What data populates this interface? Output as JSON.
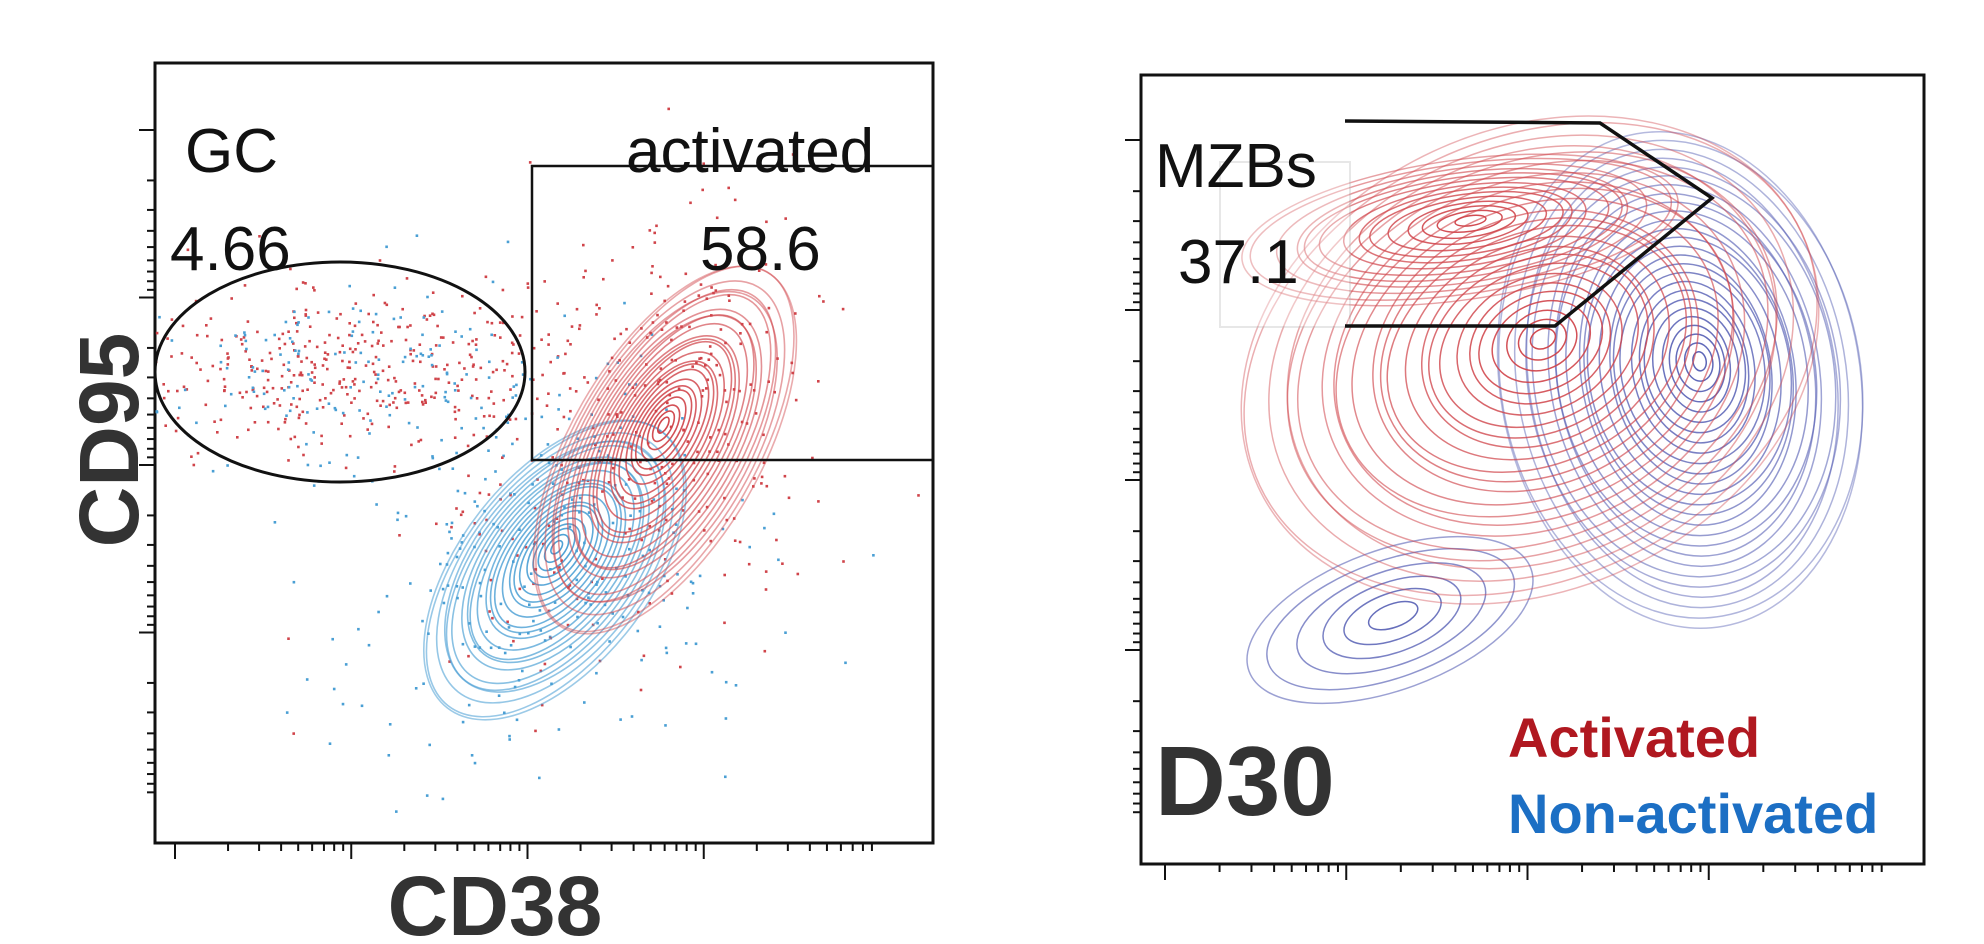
{
  "colors": {
    "activated": "#d0444a",
    "non_activated_left": "#4a9fd4",
    "non_activated_right": "#5a63b6",
    "legend_activated": "#b01820",
    "legend_non_activated": "#1c6fc4",
    "gate": "#111111",
    "axis_title": "#333333"
  },
  "chart_data": [
    {
      "type": "scatter",
      "subtype": "flow-cytometry-contour-overlay",
      "xlabel": "CD38",
      "ylabel": "CD95",
      "x_scale": "log",
      "y_scale": "log",
      "tick_labels_shown": false,
      "gates": [
        {
          "name": "GC",
          "shape": "ellipse",
          "percent": "4.66"
        },
        {
          "name": "activated",
          "shape": "rectangle",
          "percent": "58.6"
        }
      ],
      "populations": [
        "activated",
        "non-activated"
      ]
    },
    {
      "type": "scatter",
      "subtype": "flow-cytometry-contour-overlay",
      "timepoint": "D30",
      "x_scale": "log",
      "y_scale": "log",
      "tick_labels_shown": false,
      "gates": [
        {
          "name": "MZBs",
          "shape": "polygon",
          "percent": "37.1"
        }
      ],
      "legend": [
        "Activated",
        "Non-activated"
      ],
      "legend_placement": "bottom-right"
    }
  ]
}
